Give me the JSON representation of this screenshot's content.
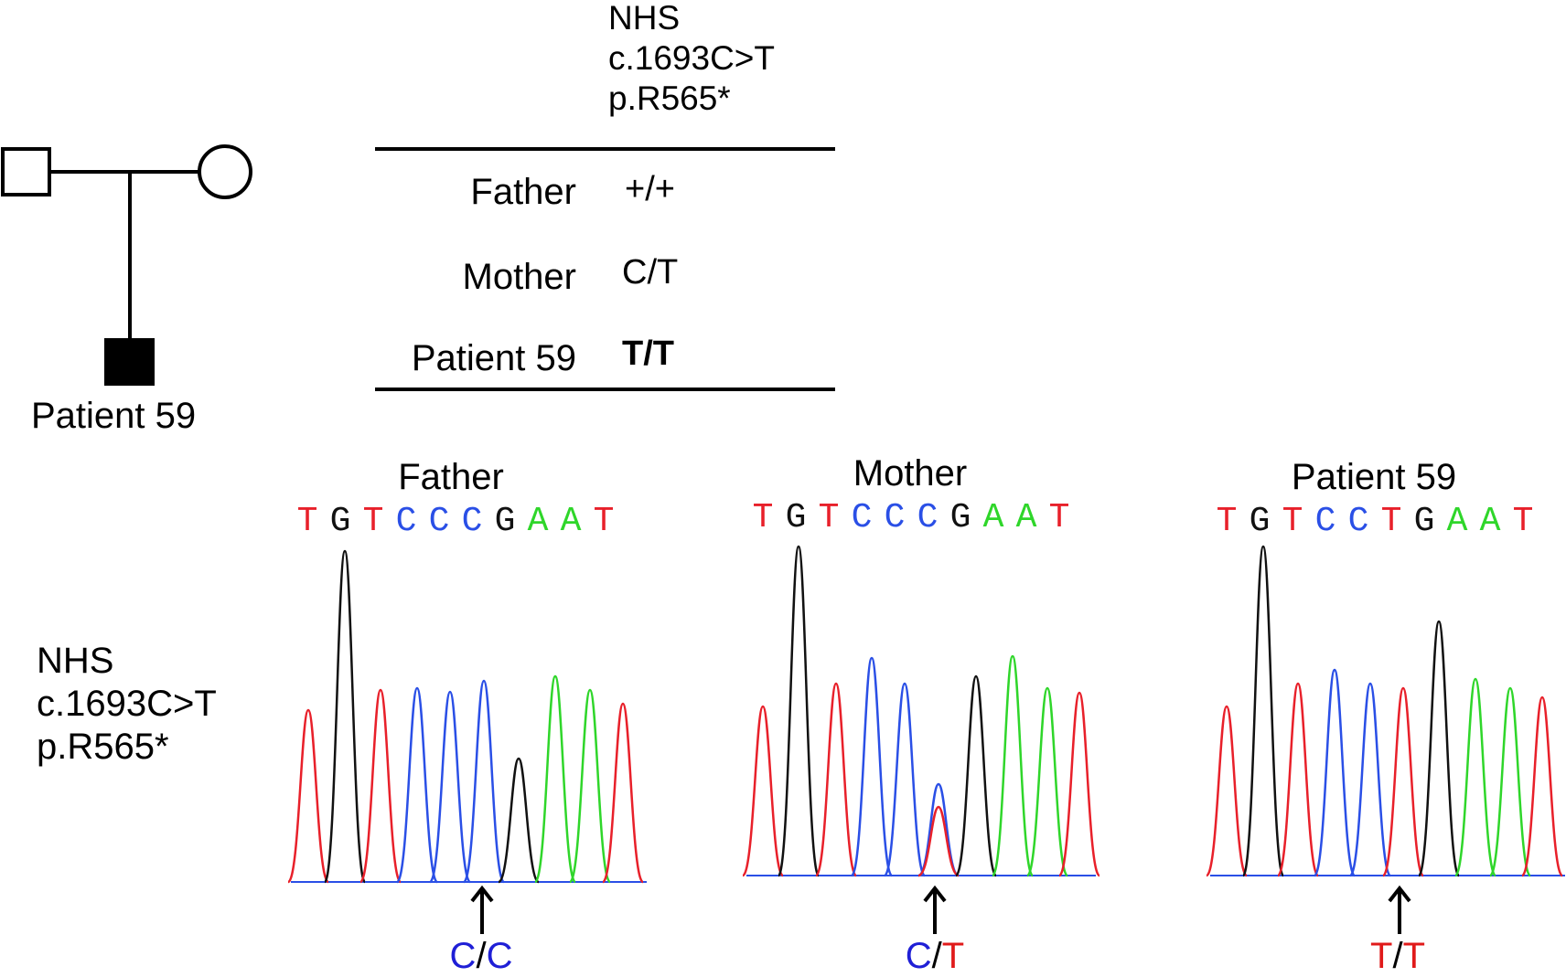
{
  "header_label": [
    "NHS",
    "c.1693C>T",
    "p.R565*"
  ],
  "pedigree": {
    "patient_label": "Patient 59"
  },
  "table": {
    "rows": [
      {
        "name": "Father",
        "value": "+/+",
        "bold": false
      },
      {
        "name": "Mother",
        "value": "C/T",
        "bold": false
      },
      {
        "name": "Patient 59",
        "value": "T/T",
        "bold": true
      }
    ]
  },
  "side_label": [
    "NHS",
    "c.1693C>T",
    "p.R565*"
  ],
  "base_colors": {
    "T": "#e8202a",
    "G": "#111111",
    "C": "#2a4fe6",
    "A": "#2fd62a"
  },
  "traces": [
    {
      "title": "Father",
      "sequence": [
        "T",
        "G",
        "T",
        "C",
        "C",
        "C",
        "G",
        "A",
        "A",
        "T"
      ],
      "genotype": [
        {
          "allele": "C",
          "color": "#1f1fd6"
        },
        {
          "allele": "C",
          "color": "#1f1fd6"
        }
      ]
    },
    {
      "title": "Mother",
      "sequence": [
        "T",
        "G",
        "T",
        "C",
        "C",
        "C",
        "G",
        "A",
        "A",
        "T"
      ],
      "genotype": [
        {
          "allele": "C",
          "color": "#1f1fd6"
        },
        {
          "allele": "T",
          "color": "#e01a1a"
        }
      ]
    },
    {
      "title": "Patient 59",
      "sequence": [
        "T",
        "G",
        "T",
        "C",
        "C",
        "T",
        "G",
        "A",
        "A",
        "T"
      ],
      "genotype": [
        {
          "allele": "T",
          "color": "#e01a1a"
        },
        {
          "allele": "T",
          "color": "#e01a1a"
        }
      ]
    }
  ]
}
